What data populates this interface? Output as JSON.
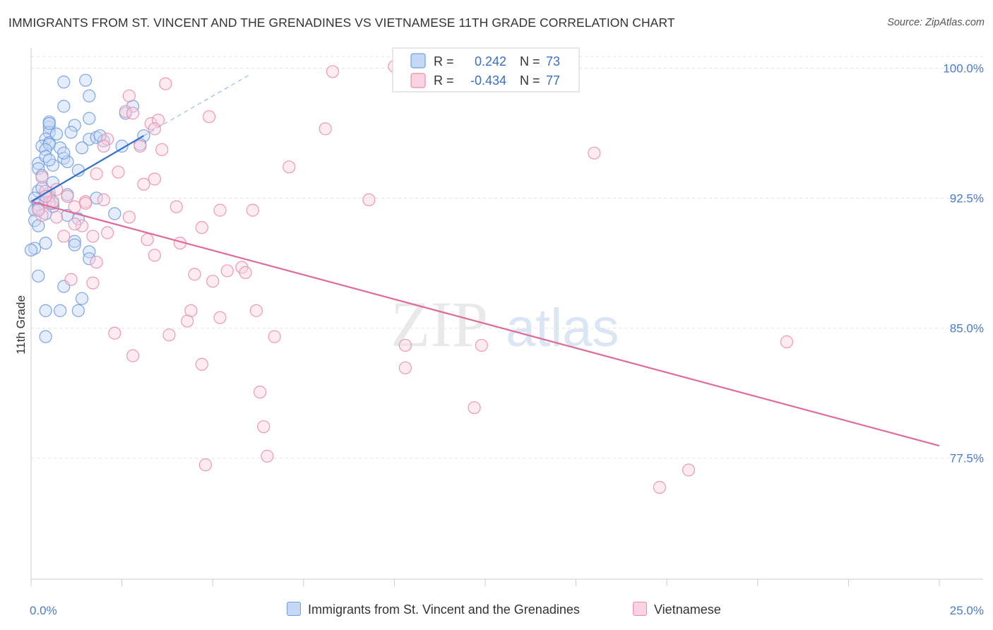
{
  "title": "IMMIGRANTS FROM ST. VINCENT AND THE GRENADINES VS VIETNAMESE 11TH GRADE CORRELATION CHART",
  "source": "Source: ZipAtlas.com",
  "watermark": {
    "part1": "ZIP",
    "part2": "atlas"
  },
  "colors": {
    "blue": "#6f9fe0",
    "blue_fill": "#c5d8f5",
    "blue_line": "#2f6fce",
    "pink": "#ea8fb0",
    "pink_fill": "#f9d3e1",
    "pink_line": "#e06b98",
    "grid": "#e3e3e3",
    "tick_text": "#4a7cc7"
  },
  "legend": {
    "rows": [
      {
        "r_label": "R =",
        "r_value": "0.242",
        "n_label": "N =",
        "n_value": "73"
      },
      {
        "r_label": "R =",
        "r_value": "-0.434",
        "n_label": "N =",
        "n_value": "77"
      }
    ]
  },
  "bottom_legend": {
    "series1": "Immigrants from St. Vincent and the Grenadines",
    "series2": "Vietnamese"
  },
  "chart_data": {
    "type": "scatter",
    "title": "IMMIGRANTS FROM ST. VINCENT AND THE GRENADINES VS VIETNAMESE 11TH GRADE CORRELATION CHART",
    "xlabel": "",
    "ylabel": "11th Grade",
    "xlim": [
      0,
      25
    ],
    "ylim": [
      70.5,
      101
    ],
    "x_tick_labels": [
      "0.0%",
      "25.0%"
    ],
    "y_ticks": [
      77.5,
      85.0,
      92.5,
      100.0
    ],
    "y_tick_labels": [
      "77.5%",
      "85.0%",
      "92.5%",
      "100.0%"
    ],
    "series": [
      {
        "name": "Immigrants from St. Vincent and the Grenadines",
        "color": "blue",
        "r": 0.242,
        "n": 73,
        "trend": {
          "x0": 0.0,
          "y0": 92.3,
          "x1": 3.1,
          "y1": 96.1,
          "dash_to_x": 6.0,
          "dash_to_y": 99.6
        },
        "points": [
          [
            0.4,
            92.6
          ],
          [
            0.5,
            96.6
          ],
          [
            0.9,
            99.2
          ],
          [
            1.5,
            99.3
          ],
          [
            1.6,
            98.4
          ],
          [
            0.9,
            97.8
          ],
          [
            1.6,
            97.1
          ],
          [
            0.5,
            96.9
          ],
          [
            1.2,
            96.7
          ],
          [
            0.5,
            96.3
          ],
          [
            0.4,
            95.9
          ],
          [
            0.5,
            95.7
          ],
          [
            1.1,
            96.3
          ],
          [
            1.6,
            95.9
          ],
          [
            1.8,
            96.0
          ],
          [
            0.3,
            95.5
          ],
          [
            0.5,
            95.6
          ],
          [
            0.8,
            95.4
          ],
          [
            0.4,
            95.3
          ],
          [
            2.5,
            95.5
          ],
          [
            0.2,
            94.5
          ],
          [
            0.4,
            94.9
          ],
          [
            0.9,
            94.8
          ],
          [
            1.0,
            94.6
          ],
          [
            0.2,
            94.2
          ],
          [
            0.6,
            94.4
          ],
          [
            1.3,
            94.1
          ],
          [
            0.3,
            93.8
          ],
          [
            0.6,
            93.4
          ],
          [
            0.2,
            92.9
          ],
          [
            0.5,
            92.8
          ],
          [
            1.0,
            92.7
          ],
          [
            1.8,
            92.5
          ],
          [
            0.1,
            92.5
          ],
          [
            0.4,
            92.3
          ],
          [
            0.2,
            92.1
          ],
          [
            0.6,
            92.0
          ],
          [
            0.1,
            91.8
          ],
          [
            0.4,
            91.6
          ],
          [
            0.1,
            91.2
          ],
          [
            0.2,
            90.9
          ],
          [
            1.3,
            91.3
          ],
          [
            0.4,
            89.9
          ],
          [
            0.1,
            89.6
          ],
          [
            1.2,
            90.0
          ],
          [
            1.2,
            89.8
          ],
          [
            1.6,
            89.4
          ],
          [
            1.6,
            89.0
          ],
          [
            0.2,
            88.0
          ],
          [
            0.9,
            87.4
          ],
          [
            1.4,
            86.7
          ],
          [
            0.4,
            86.0
          ],
          [
            0.8,
            86.0
          ],
          [
            1.3,
            86.0
          ],
          [
            0.4,
            84.5
          ],
          [
            0.5,
            96.8
          ],
          [
            0.9,
            95.1
          ],
          [
            0.5,
            92.6
          ],
          [
            0.3,
            93.1
          ],
          [
            0.5,
            94.7
          ],
          [
            0.0,
            89.5
          ],
          [
            3.1,
            96.1
          ],
          [
            3.0,
            95.6
          ],
          [
            2.8,
            97.8
          ],
          [
            2.6,
            97.4
          ],
          [
            2.0,
            95.8
          ],
          [
            1.9,
            96.1
          ],
          [
            2.3,
            91.6
          ],
          [
            0.2,
            91.9
          ],
          [
            0.6,
            92.2
          ],
          [
            1.0,
            91.5
          ],
          [
            1.4,
            95.4
          ],
          [
            0.7,
            96.2
          ]
        ]
      },
      {
        "name": "Vietnamese",
        "color": "pink",
        "r": -0.434,
        "n": 77,
        "trend": {
          "x0": 0.0,
          "y0": 92.3,
          "x1": 25.0,
          "y1": 78.2
        },
        "points": [
          [
            10.0,
            100.1
          ],
          [
            8.3,
            99.8
          ],
          [
            3.7,
            99.1
          ],
          [
            2.7,
            98.4
          ],
          [
            2.6,
            97.5
          ],
          [
            2.8,
            97.4
          ],
          [
            4.9,
            97.2
          ],
          [
            3.3,
            96.8
          ],
          [
            3.5,
            97.0
          ],
          [
            3.4,
            96.5
          ],
          [
            8.1,
            96.5
          ],
          [
            2.1,
            95.9
          ],
          [
            2.0,
            95.5
          ],
          [
            3.0,
            95.5
          ],
          [
            3.6,
            95.3
          ],
          [
            15.5,
            95.1
          ],
          [
            7.1,
            94.3
          ],
          [
            1.8,
            93.9
          ],
          [
            3.4,
            93.6
          ],
          [
            3.1,
            93.3
          ],
          [
            0.4,
            92.9
          ],
          [
            0.7,
            93.0
          ],
          [
            1.0,
            92.6
          ],
          [
            1.5,
            92.3
          ],
          [
            9.3,
            92.4
          ],
          [
            0.5,
            92.2
          ],
          [
            1.2,
            92.0
          ],
          [
            4.0,
            92.0
          ],
          [
            5.2,
            91.8
          ],
          [
            6.1,
            91.8
          ],
          [
            0.3,
            91.5
          ],
          [
            0.7,
            91.4
          ],
          [
            2.7,
            91.4
          ],
          [
            1.4,
            90.9
          ],
          [
            4.7,
            90.8
          ],
          [
            1.7,
            90.3
          ],
          [
            0.9,
            90.3
          ],
          [
            3.2,
            90.1
          ],
          [
            4.1,
            89.9
          ],
          [
            3.4,
            89.2
          ],
          [
            1.8,
            88.8
          ],
          [
            5.4,
            88.3
          ],
          [
            5.8,
            88.5
          ],
          [
            5.9,
            88.2
          ],
          [
            4.5,
            88.1
          ],
          [
            1.1,
            87.8
          ],
          [
            1.7,
            87.6
          ],
          [
            5.0,
            87.7
          ],
          [
            4.4,
            86.0
          ],
          [
            6.2,
            86.0
          ],
          [
            5.2,
            85.6
          ],
          [
            4.3,
            85.4
          ],
          [
            2.3,
            84.7
          ],
          [
            3.8,
            84.6
          ],
          [
            6.7,
            84.5
          ],
          [
            10.3,
            84.0
          ],
          [
            12.4,
            84.0
          ],
          [
            20.8,
            84.2
          ],
          [
            2.8,
            83.4
          ],
          [
            4.7,
            82.9
          ],
          [
            10.3,
            82.7
          ],
          [
            6.3,
            81.3
          ],
          [
            12.2,
            80.4
          ],
          [
            6.4,
            79.3
          ],
          [
            6.5,
            77.6
          ],
          [
            4.8,
            77.1
          ],
          [
            18.1,
            76.8
          ],
          [
            17.3,
            75.8
          ],
          [
            0.2,
            91.8
          ],
          [
            0.6,
            92.3
          ],
          [
            1.5,
            92.2
          ],
          [
            2.0,
            92.4
          ],
          [
            2.4,
            94.0
          ],
          [
            0.3,
            93.7
          ],
          [
            1.2,
            91.0
          ],
          [
            0.4,
            92.6
          ],
          [
            2.1,
            90.5
          ]
        ]
      }
    ]
  }
}
